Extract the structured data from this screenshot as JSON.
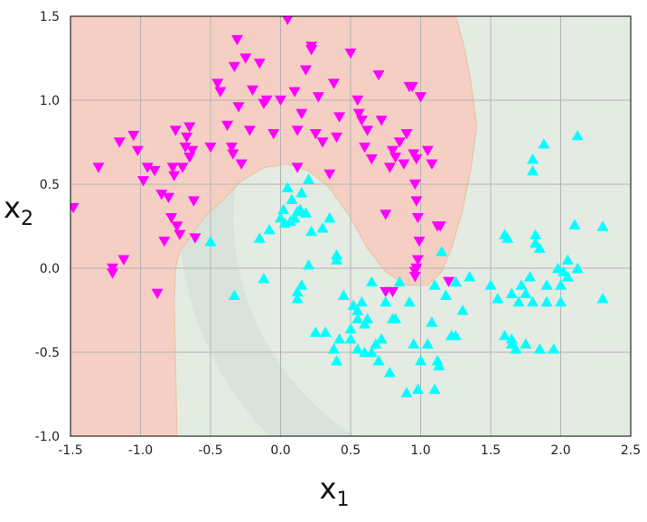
{
  "chart_data": {
    "type": "scatter",
    "title": "",
    "xlabel": "x",
    "xlabel_sub": "1",
    "ylabel": "x",
    "ylabel_sub": "2",
    "xlim": [
      -1.5,
      2.5
    ],
    "ylim": [
      -1.0,
      1.5
    ],
    "grid": true,
    "xticks": [
      "-1.5",
      "-1.0",
      "-0.5",
      "0.0",
      "0.5",
      "1.0",
      "1.5",
      "2.0",
      "2.5"
    ],
    "yticks": [
      "-1.0",
      "-0.5",
      "0.0",
      "0.5",
      "1.0",
      "1.5"
    ],
    "decision_regions": {
      "class_0_color": "#f6cfc4",
      "class_1_color": "#e3ebe2",
      "outer_band_color": "#d9e3dc",
      "boundary": [
        [
          -0.74,
          -1.0
        ],
        [
          -0.75,
          -0.6
        ],
        [
          -0.76,
          -0.2
        ],
        [
          -0.75,
          0.0
        ],
        [
          -0.72,
          0.1
        ],
        [
          -0.65,
          0.18
        ],
        [
          -0.55,
          0.3
        ],
        [
          -0.42,
          0.4
        ],
        [
          -0.28,
          0.52
        ],
        [
          -0.12,
          0.6
        ],
        [
          0.05,
          0.62
        ],
        [
          0.2,
          0.58
        ],
        [
          0.35,
          0.48
        ],
        [
          0.5,
          0.3
        ],
        [
          0.62,
          0.12
        ],
        [
          0.75,
          -0.02
        ],
        [
          0.9,
          -0.1
        ],
        [
          1.05,
          -0.1
        ],
        [
          1.15,
          -0.02
        ],
        [
          1.22,
          0.12
        ],
        [
          1.3,
          0.35
        ],
        [
          1.36,
          0.6
        ],
        [
          1.4,
          0.85
        ],
        [
          1.35,
          1.15
        ],
        [
          1.3,
          1.35
        ],
        [
          1.25,
          1.5
        ]
      ]
    },
    "series": [
      {
        "marker": "triangle-down",
        "color": "#ff00ff",
        "points": [
          [
            -1.48,
            0.36
          ],
          [
            -1.3,
            0.6
          ],
          [
            -1.2,
            0.0
          ],
          [
            -1.2,
            -0.03
          ],
          [
            -1.15,
            0.75
          ],
          [
            -1.12,
            0.05
          ],
          [
            -1.05,
            0.79
          ],
          [
            -1.02,
            0.7
          ],
          [
            -0.98,
            0.52
          ],
          [
            -0.95,
            0.6
          ],
          [
            -0.9,
            0.58
          ],
          [
            -0.88,
            -0.15
          ],
          [
            -0.85,
            0.44
          ],
          [
            -0.83,
            0.16
          ],
          [
            -0.8,
            0.42
          ],
          [
            -0.78,
            0.3
          ],
          [
            -0.77,
            0.6
          ],
          [
            -0.76,
            0.55
          ],
          [
            -0.75,
            0.82
          ],
          [
            -0.74,
            0.25
          ],
          [
            -0.72,
            0.2
          ],
          [
            -0.7,
            0.6
          ],
          [
            -0.68,
            0.72
          ],
          [
            -0.67,
            0.78
          ],
          [
            -0.65,
            0.84
          ],
          [
            -0.65,
            0.66
          ],
          [
            -0.63,
            0.7
          ],
          [
            -0.62,
            0.4
          ],
          [
            -0.61,
            0.18
          ],
          [
            -0.5,
            0.72
          ],
          [
            -0.45,
            1.1
          ],
          [
            -0.43,
            1.05
          ],
          [
            -0.38,
            0.85
          ],
          [
            -0.35,
            0.72
          ],
          [
            -0.34,
            0.68
          ],
          [
            -0.33,
            1.2
          ],
          [
            -0.31,
            1.36
          ],
          [
            -0.3,
            0.96
          ],
          [
            -0.28,
            0.62
          ],
          [
            -0.25,
            1.25
          ],
          [
            -0.22,
            0.82
          ],
          [
            -0.2,
            1.06
          ],
          [
            -0.15,
            1.22
          ],
          [
            -0.12,
            0.98
          ],
          [
            -0.1,
            1.0
          ],
          [
            -0.05,
            0.8
          ],
          [
            0.0,
            1.0
          ],
          [
            0.05,
            1.48
          ],
          [
            0.1,
            1.05
          ],
          [
            0.12,
            0.82
          ],
          [
            0.12,
            0.6
          ],
          [
            0.15,
            0.92
          ],
          [
            0.18,
            1.18
          ],
          [
            0.22,
            1.32
          ],
          [
            0.22,
            1.3
          ],
          [
            0.25,
            0.8
          ],
          [
            0.27,
            1.02
          ],
          [
            0.3,
            0.75
          ],
          [
            0.35,
            0.56
          ],
          [
            0.38,
            1.1
          ],
          [
            0.4,
            0.78
          ],
          [
            0.42,
            0.9
          ],
          [
            0.5,
            1.28
          ],
          [
            0.55,
            1.0
          ],
          [
            0.56,
            0.92
          ],
          [
            0.58,
            0.88
          ],
          [
            0.6,
            0.72
          ],
          [
            0.62,
            0.82
          ],
          [
            0.65,
            0.65
          ],
          [
            0.7,
            1.15
          ],
          [
            0.72,
            0.88
          ],
          [
            0.75,
            0.32
          ],
          [
            0.78,
            0.6
          ],
          [
            0.8,
            0.7
          ],
          [
            0.82,
            0.66
          ],
          [
            0.85,
            0.75
          ],
          [
            0.88,
            0.62
          ],
          [
            0.9,
            0.8
          ],
          [
            0.92,
            1.08
          ],
          [
            0.94,
            1.08
          ],
          [
            0.95,
            0.68
          ],
          [
            0.96,
            0.5
          ],
          [
            0.97,
            0.4
          ],
          [
            0.97,
            0.65
          ],
          [
            0.98,
            0.3
          ],
          [
            0.99,
            0.16
          ],
          [
            0.98,
            0.05
          ],
          [
            0.97,
            0.0
          ],
          [
            0.96,
            -0.02
          ],
          [
            0.96,
            -0.05
          ],
          [
            1.0,
            1.02
          ],
          [
            1.05,
            0.7
          ],
          [
            1.08,
            0.62
          ],
          [
            1.12,
            0.25
          ],
          [
            1.14,
            0.25
          ],
          [
            1.2,
            -0.08
          ],
          [
            0.75,
            -0.14
          ],
          [
            0.8,
            -0.14
          ]
        ]
      },
      {
        "marker": "triangle-up",
        "color": "#00ffff",
        "points": [
          [
            -0.5,
            0.16
          ],
          [
            -0.33,
            -0.16
          ],
          [
            -0.15,
            0.18
          ],
          [
            -0.12,
            -0.06
          ],
          [
            -0.08,
            0.23
          ],
          [
            0.0,
            0.3
          ],
          [
            0.02,
            0.35
          ],
          [
            0.03,
            0.27
          ],
          [
            0.05,
            0.48
          ],
          [
            0.07,
            0.28
          ],
          [
            0.08,
            0.41
          ],
          [
            0.1,
            0.3
          ],
          [
            0.12,
            0.34
          ],
          [
            0.14,
            0.35
          ],
          [
            0.15,
            0.45
          ],
          [
            0.15,
            -0.1
          ],
          [
            0.12,
            -0.14
          ],
          [
            0.12,
            -0.18
          ],
          [
            0.18,
            0.33
          ],
          [
            0.2,
            0.53
          ],
          [
            0.2,
            0.02
          ],
          [
            0.22,
            0.22
          ],
          [
            0.25,
            -0.38
          ],
          [
            0.3,
            0.24
          ],
          [
            0.32,
            -0.38
          ],
          [
            0.35,
            0.3
          ],
          [
            0.38,
            -0.48
          ],
          [
            0.4,
            0.05
          ],
          [
            0.4,
            0.08
          ],
          [
            0.4,
            -0.55
          ],
          [
            0.42,
            -0.42
          ],
          [
            0.45,
            -0.16
          ],
          [
            0.5,
            -0.36
          ],
          [
            0.5,
            -0.42
          ],
          [
            0.52,
            -0.22
          ],
          [
            0.55,
            -0.25
          ],
          [
            0.55,
            -0.3
          ],
          [
            0.55,
            -0.48
          ],
          [
            0.58,
            -0.2
          ],
          [
            0.6,
            -0.33
          ],
          [
            0.6,
            -0.5
          ],
          [
            0.62,
            -0.3
          ],
          [
            0.65,
            -0.5
          ],
          [
            0.65,
            -0.08
          ],
          [
            0.68,
            -0.45
          ],
          [
            0.7,
            -0.55
          ],
          [
            0.72,
            -0.42
          ],
          [
            0.75,
            -0.2
          ],
          [
            0.78,
            -0.62
          ],
          [
            0.8,
            -0.3
          ],
          [
            0.82,
            -0.3
          ],
          [
            0.85,
            -0.08
          ],
          [
            0.9,
            -0.74
          ],
          [
            0.92,
            -0.2
          ],
          [
            0.95,
            -0.45
          ],
          [
            0.98,
            -0.72
          ],
          [
            1.0,
            -0.55
          ],
          [
            1.05,
            -0.45
          ],
          [
            1.08,
            -0.32
          ],
          [
            1.1,
            -0.1
          ],
          [
            1.1,
            -0.72
          ],
          [
            1.12,
            -0.55
          ],
          [
            1.13,
            -0.58
          ],
          [
            1.15,
            0.1
          ],
          [
            1.18,
            -0.16
          ],
          [
            1.22,
            -0.4
          ],
          [
            1.25,
            -0.4
          ],
          [
            1.25,
            -0.08
          ],
          [
            1.3,
            -0.25
          ],
          [
            1.35,
            -0.05
          ],
          [
            1.5,
            -0.1
          ],
          [
            1.55,
            -0.18
          ],
          [
            1.6,
            0.2
          ],
          [
            1.6,
            -0.4
          ],
          [
            1.62,
            0.18
          ],
          [
            1.65,
            -0.15
          ],
          [
            1.65,
            -0.45
          ],
          [
            1.65,
            -0.42
          ],
          [
            1.68,
            -0.48
          ],
          [
            1.7,
            -0.2
          ],
          [
            1.72,
            -0.1
          ],
          [
            1.75,
            -0.15
          ],
          [
            1.75,
            -0.45
          ],
          [
            1.78,
            -0.05
          ],
          [
            1.8,
            0.65
          ],
          [
            1.8,
            0.58
          ],
          [
            1.8,
            -0.2
          ],
          [
            1.82,
            0.2
          ],
          [
            1.82,
            0.15
          ],
          [
            1.85,
            0.12
          ],
          [
            1.85,
            -0.48
          ],
          [
            1.88,
            0.74
          ],
          [
            1.9,
            -0.1
          ],
          [
            1.9,
            -0.2
          ],
          [
            1.95,
            -0.48
          ],
          [
            1.98,
            0.0
          ],
          [
            2.0,
            -0.1
          ],
          [
            2.0,
            -0.2
          ],
          [
            2.02,
            -0.02
          ],
          [
            2.05,
            0.05
          ],
          [
            2.05,
            -0.05
          ],
          [
            2.1,
            0.26
          ],
          [
            2.12,
            0.79
          ],
          [
            2.12,
            0.0
          ],
          [
            2.3,
            0.25
          ],
          [
            2.3,
            -0.18
          ]
        ]
      }
    ]
  }
}
